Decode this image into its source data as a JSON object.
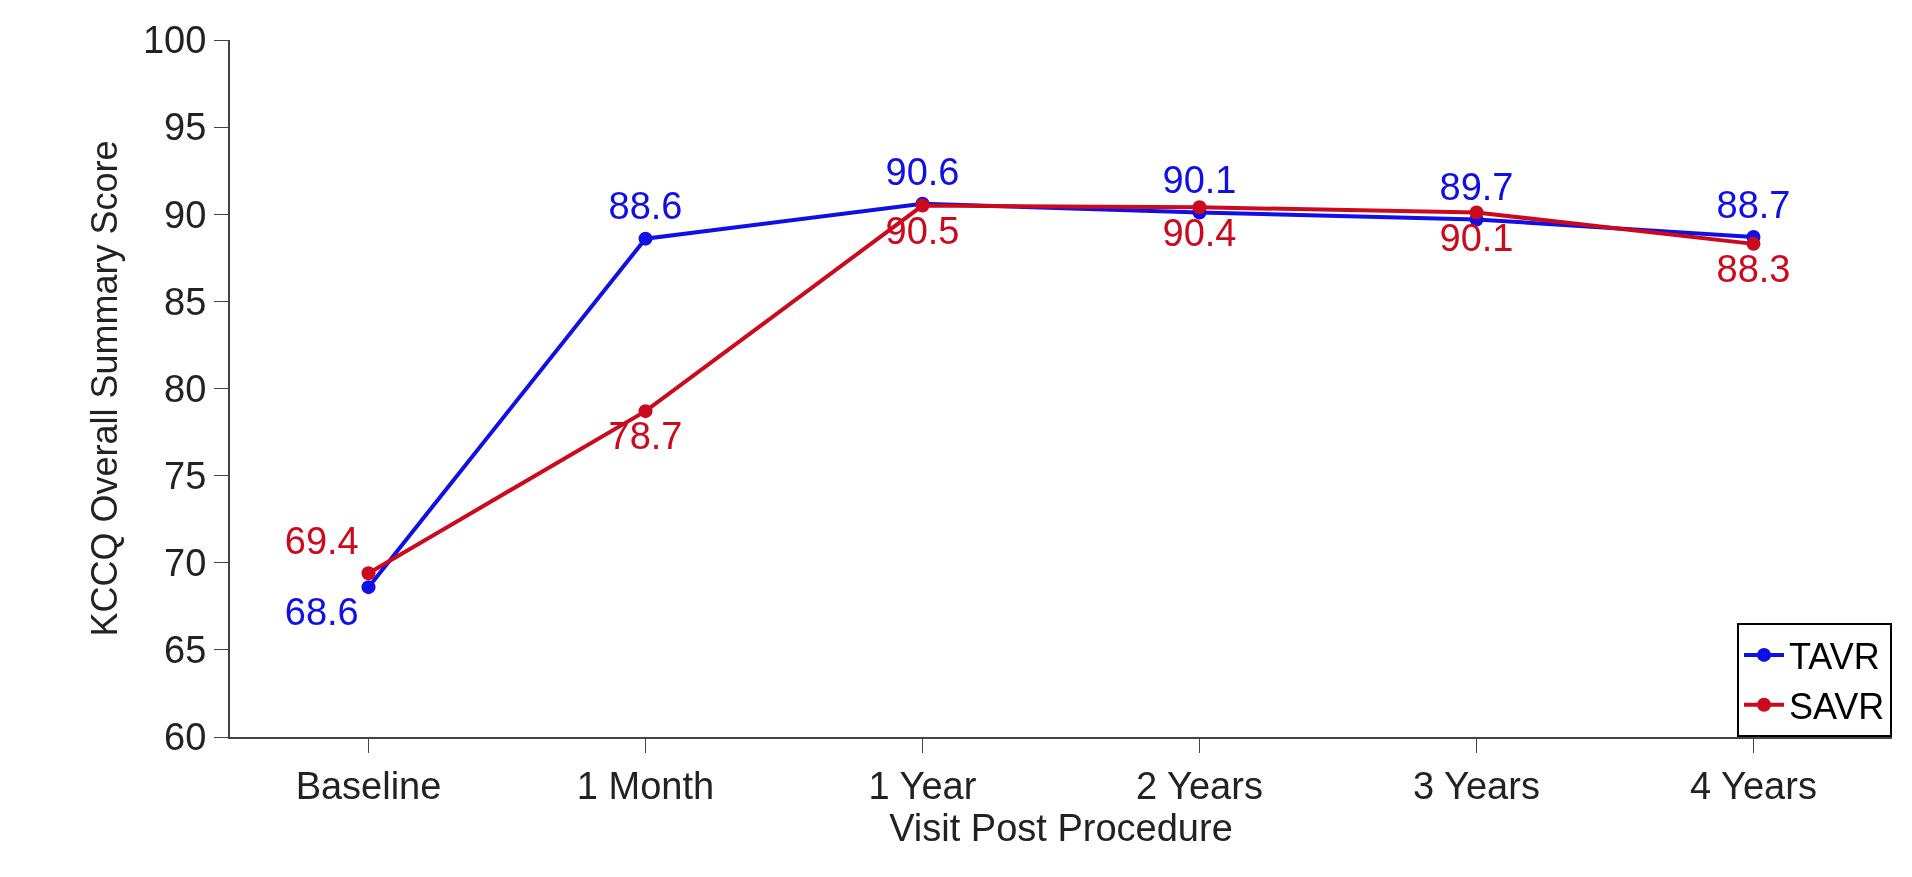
{
  "chart_data": {
    "type": "line",
    "xlabel": "Visit Post Procedure",
    "ylabel": "KCCQ Overall Summary Score",
    "categories": [
      "Baseline",
      "1 Month",
      "1 Year",
      "2 Years",
      "3 Years",
      "4 Years"
    ],
    "series": [
      {
        "name": "TAVR",
        "color": "#1010e6",
        "values": [
          68.6,
          88.6,
          90.6,
          90.1,
          89.7,
          88.7
        ]
      },
      {
        "name": "SAVR",
        "color": "#cc0a1e",
        "values": [
          69.4,
          78.7,
          90.5,
          90.4,
          90.1,
          88.3
        ]
      }
    ],
    "ylim": [
      60,
      100
    ],
    "yticks": [
      60,
      65,
      70,
      75,
      80,
      85,
      90,
      95,
      100
    ],
    "legend": "bottom right",
    "marker": "circle",
    "line_style": "solid",
    "data_labels": true
  }
}
